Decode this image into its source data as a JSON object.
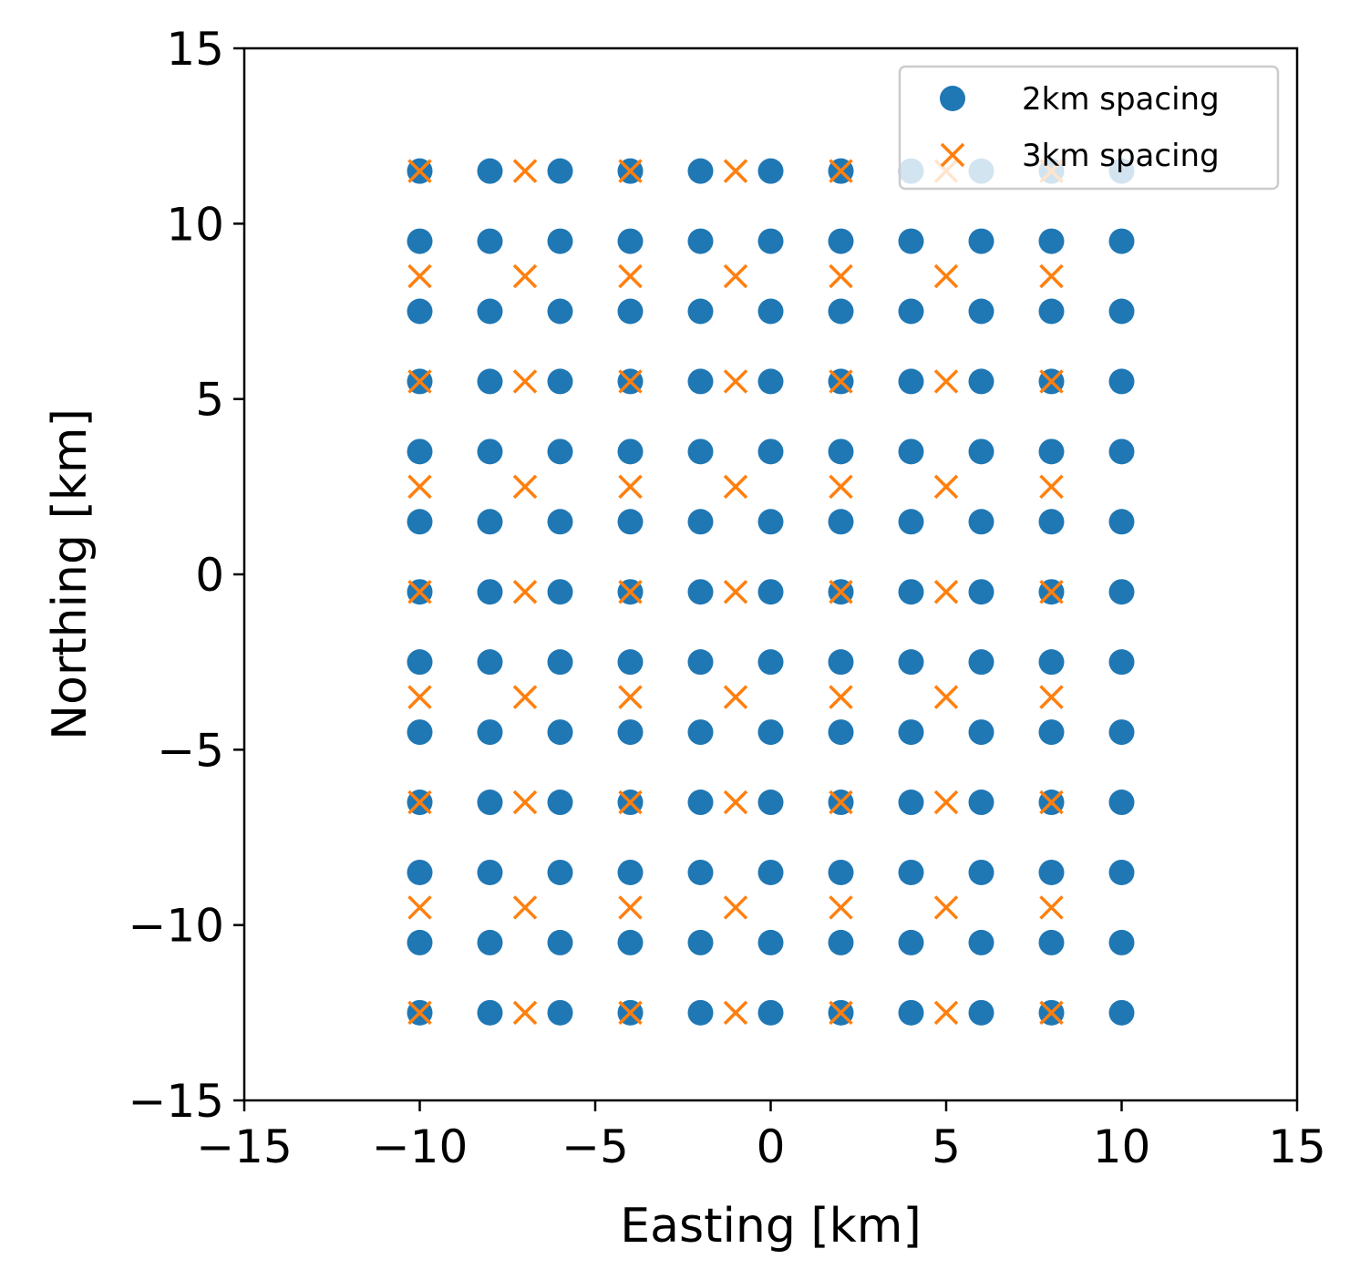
{
  "chart_data": {
    "type": "scatter",
    "xlabel": "Easting [km]",
    "ylabel": "Northing [km]",
    "xlim": [
      -15,
      15
    ],
    "ylim": [
      -15,
      15
    ],
    "xticks": [
      -15,
      -10,
      -5,
      0,
      5,
      10,
      15
    ],
    "xtick_labels": [
      "−15",
      "−10",
      "−5",
      "0",
      "5",
      "10",
      "15"
    ],
    "yticks": [
      -15,
      -10,
      -5,
      0,
      5,
      10,
      15
    ],
    "ytick_labels": [
      "−15",
      "−10",
      "−5",
      "0",
      "5",
      "10",
      "15"
    ],
    "grid": false,
    "legend_position": "top-right",
    "series": [
      {
        "name": "2km spacing",
        "marker": "circle",
        "color": "#1f77b4",
        "grid_x": [
          -10,
          -8,
          -6,
          -4,
          -2,
          0,
          2,
          4,
          6,
          8,
          10
        ],
        "grid_y": [
          11.5,
          9.5,
          7.5,
          5.5,
          3.5,
          1.5,
          -0.5,
          -2.5,
          -4.5,
          -6.5,
          -8.5,
          -10.5,
          -12.5
        ]
      },
      {
        "name": "3km spacing",
        "marker": "x",
        "color": "#ff7f0e",
        "grid_x": [
          -10,
          -7,
          -4,
          -1,
          2,
          5,
          8
        ],
        "grid_y": [
          11.5,
          8.5,
          5.5,
          2.5,
          -0.5,
          -3.5,
          -6.5,
          -9.5,
          -12.5
        ]
      }
    ]
  }
}
